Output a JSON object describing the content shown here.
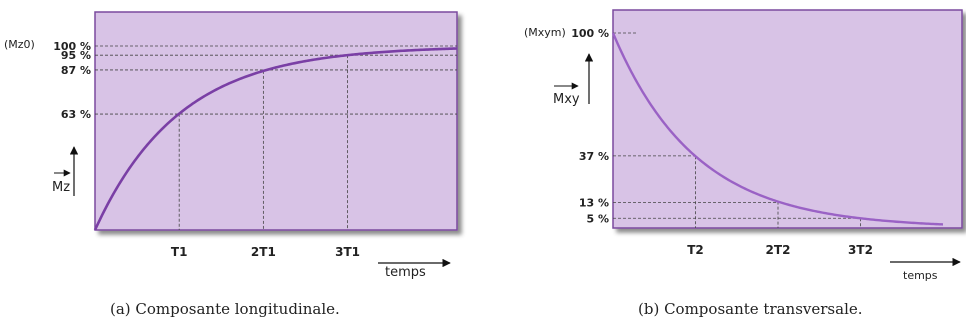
{
  "chart_data": [
    {
      "type": "line",
      "caption": "(a)  Composante longitudinale.",
      "ylabel": "Mz",
      "y_top_label": "(Mz0)",
      "xlabel": "temps",
      "x_tick_labels": [
        "T1",
        "2T1",
        "3T1"
      ],
      "x_ticks": [
        1,
        2,
        3
      ],
      "y_tick_labels": [
        "100 %",
        "95 %",
        "87 %",
        "63 %"
      ],
      "y_ticks": [
        100,
        95,
        87,
        63
      ],
      "xlim": [
        0,
        4.3
      ],
      "ylim": [
        0,
        100
      ],
      "colors": {
        "background": "#d8c3e6",
        "curve": "#7a3fa5",
        "border": "#7a4a9e"
      }
    },
    {
      "type": "line",
      "caption": "(b)  Composante transversale.",
      "ylabel": "Mxy",
      "y_top_label": "(Mxym)",
      "xlabel": "temps",
      "x_tick_labels": [
        "T2",
        "2T2",
        "3T2"
      ],
      "x_ticks": [
        1,
        2,
        3
      ],
      "y_tick_labels": [
        "100 %",
        "37 %",
        "13 %",
        "5 %"
      ],
      "y_ticks": [
        100,
        37,
        13,
        5
      ],
      "xlim": [
        0,
        4.0
      ],
      "ylim": [
        0,
        100
      ],
      "colors": {
        "background": "#d8c3e6",
        "curve": "#9a62c5",
        "border": "#7a4a9e"
      }
    }
  ]
}
